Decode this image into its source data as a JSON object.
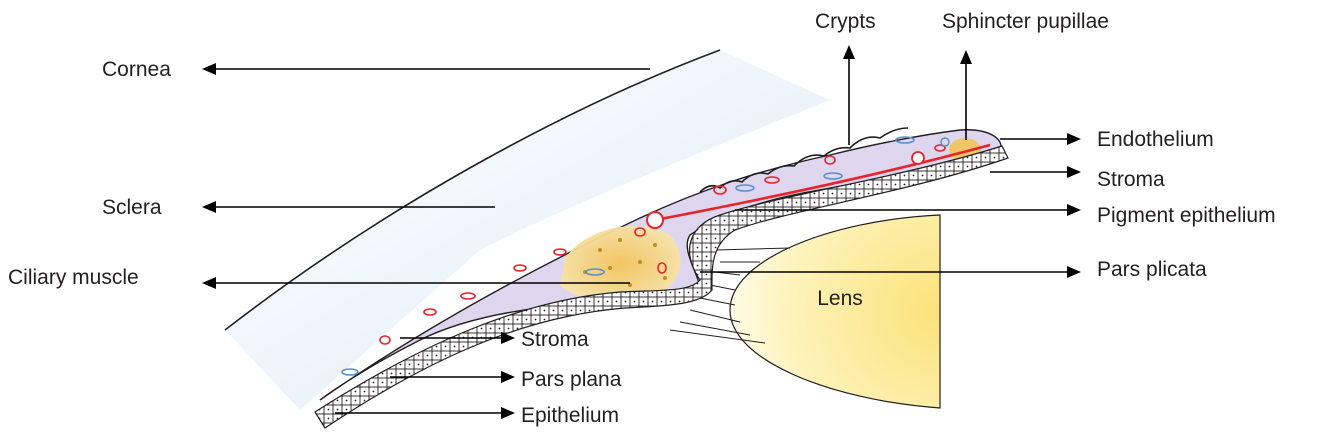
{
  "labels": {
    "cornea": "Cornea",
    "sclera": "Sclera",
    "ciliary_muscle": "Ciliary muscle",
    "crypts": "Crypts",
    "sphincter_pupillae": "Sphincter pupillae",
    "endothelium": "Endothelium",
    "stroma_iris": "Stroma",
    "pigment_epithelium": "Pigment epithelium",
    "pars_plicata": "Pars plicata",
    "lens": "Lens",
    "stroma_ciliary": "Stroma",
    "pars_plana": "Pars plana",
    "epithelium": "Epithelium"
  },
  "colors": {
    "vessel_red": "#e8232a",
    "vessel_blue": "#5b8ec9",
    "iris_lavender": "#d9d3ec",
    "lens_yellow": "#fbe98a",
    "muscle_orange": "#e8b64a"
  }
}
